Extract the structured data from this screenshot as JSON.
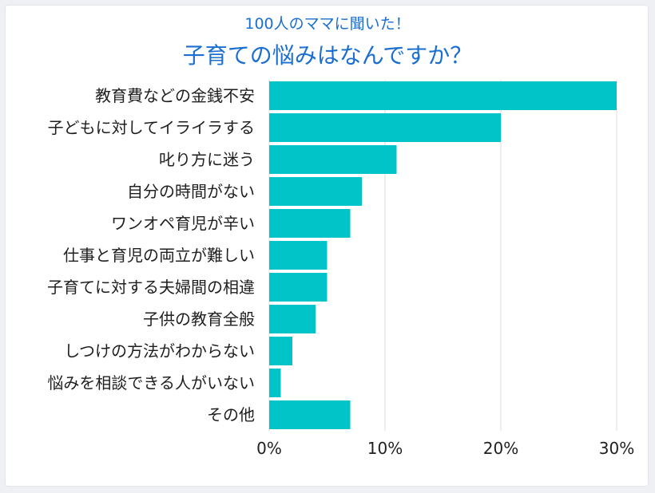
{
  "chart_data": {
    "type": "bar",
    "orientation": "horizontal",
    "subtitle": "100人のママに聞いた！",
    "title": "子育ての悩みはなんですか？",
    "categories": [
      "教育費などの金銭不安",
      "子どもに対してイライラする",
      "叱り方に迷う",
      "自分の時間がない",
      "ワンオペ育児が辛い",
      "仕事と育児の両立が難しい",
      "子育てに対する夫婦間の相違",
      "子供の教育全般",
      "しつけの方法がわからない",
      "悩みを相談できる人がいない",
      "その他"
    ],
    "values": [
      30,
      20,
      11,
      8,
      7,
      5,
      5,
      4,
      2,
      1,
      7
    ],
    "xlim": [
      0,
      30
    ],
    "xticks": [
      0,
      10,
      20,
      30
    ],
    "xtick_labels": [
      "0%",
      "10%",
      "20%",
      "30%"
    ],
    "grid": true,
    "legend": "none",
    "bar_color": "#00c4c8",
    "grid_color": "#d9dde2",
    "title_color": "#1a6fd0"
  }
}
